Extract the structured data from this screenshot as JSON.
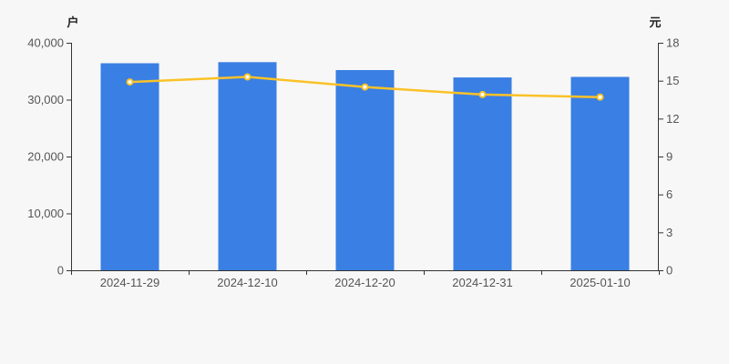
{
  "page": {
    "background_color": "#f7f7f7"
  },
  "chart_data": {
    "type": "bar",
    "subtype": "bar-and-line-dual-axis",
    "categories": [
      "2024-11-29",
      "2024-12-10",
      "2024-12-20",
      "2024-12-31",
      "2025-01-10"
    ],
    "series": [
      {
        "type": "bar",
        "axis": "left",
        "color": "#3A7FE3",
        "values": [
          36400,
          36600,
          35200,
          33900,
          34000
        ]
      },
      {
        "type": "line",
        "axis": "right",
        "color": "#FAC228",
        "marker_fill": "#FFFFFF",
        "values": [
          14.9,
          15.3,
          14.5,
          13.9,
          13.7
        ]
      }
    ],
    "left_axis": {
      "title": "户",
      "min": 0,
      "max": 40000,
      "step": 10000,
      "tick_labels": [
        "0",
        "10,000",
        "20,000",
        "30,000",
        "40,000"
      ]
    },
    "right_axis": {
      "title": "元",
      "min": 0,
      "max": 18,
      "step": 3,
      "tick_labels": [
        "0",
        "3",
        "6",
        "9",
        "12",
        "15",
        "18"
      ]
    },
    "grid": false,
    "legend": false,
    "axis_line_color": "#333333",
    "tick_label_color": "#555555"
  }
}
